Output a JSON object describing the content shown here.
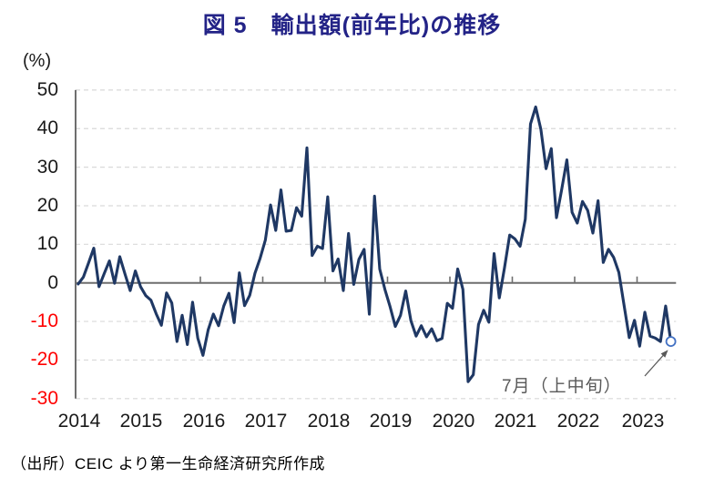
{
  "header": {
    "title": "図 5　輸出額(前年比)の推移",
    "title_color": "#232387"
  },
  "chart_data": {
    "type": "line",
    "title": "図 5　輸出額(前年比)の推移",
    "unit_label": "(%)",
    "frequency": "monthly",
    "x_start": "2014-01",
    "x_end": "2023-07",
    "ylim": [
      -30,
      50
    ],
    "ytick_interval": 10,
    "grid": "horizontal-dashed",
    "series": [
      {
        "name": "輸出額（前年比、%）",
        "color": "#1F3864",
        "values": [
          -0.3,
          1.5,
          5.2,
          9.0,
          -1.0,
          2.4,
          5.7,
          -0.1,
          6.8,
          2.3,
          -2.0,
          3.1,
          -1.0,
          -3.3,
          -4.5,
          -8.0,
          -11.0,
          -2.6,
          -5.2,
          -15.2,
          -8.4,
          -16.0,
          -5.0,
          -14.3,
          -18.8,
          -12.2,
          -8.1,
          -11.1,
          -6.0,
          -2.7,
          -10.3,
          2.6,
          -5.9,
          -3.2,
          2.5,
          6.4,
          11.1,
          20.2,
          13.6,
          24.1,
          13.4,
          13.6,
          19.5,
          17.3,
          35.0,
          7.1,
          9.5,
          8.9,
          22.3,
          3.1,
          6.2,
          -2.0,
          12.8,
          -0.4,
          6.1,
          8.7,
          -8.1,
          22.5,
          3.6,
          -1.7,
          -6.2,
          -11.3,
          -8.4,
          -2.1,
          -9.8,
          -13.8,
          -11.1,
          -14.0,
          -11.9,
          -15.0,
          -14.4,
          -5.3,
          -6.6,
          3.6,
          -1.7,
          -25.6,
          -23.8,
          -10.8,
          -7.1,
          -10.2,
          7.6,
          -3.9,
          3.9,
          12.4,
          11.4,
          9.5,
          16.5,
          41.2,
          45.6,
          39.8,
          29.6,
          34.8,
          16.9,
          24.2,
          31.9,
          18.3,
          15.5,
          21.1,
          18.8,
          12.9,
          21.3,
          5.3,
          8.7,
          6.6,
          2.7,
          -5.8,
          -14.2,
          -9.7,
          -16.4,
          -7.6,
          -13.8,
          -14.3,
          -15.2,
          -6.0,
          -15.2
        ]
      }
    ],
    "last_point": {
      "label": "7月（上中旬）",
      "value": -15.2,
      "marker": "open-circle"
    }
  },
  "axes": {
    "y_ticks": [
      {
        "label": "50",
        "color": "#1a1a1a"
      },
      {
        "label": "40",
        "color": "#1a1a1a"
      },
      {
        "label": "30",
        "color": "#1a1a1a"
      },
      {
        "label": "20",
        "color": "#1a1a1a"
      },
      {
        "label": "10",
        "color": "#1a1a1a"
      },
      {
        "label": "0",
        "color": "#1a1a1a"
      },
      {
        "label": "-10",
        "color": "#FF0000"
      },
      {
        "label": "-20",
        "color": "#FF0000"
      },
      {
        "label": "-30",
        "color": "#FF0000"
      }
    ],
    "x_ticks": [
      {
        "label": "2014"
      },
      {
        "label": "2015"
      },
      {
        "label": "2016"
      },
      {
        "label": "2017"
      },
      {
        "label": "2018"
      },
      {
        "label": "2019"
      },
      {
        "label": "2020"
      },
      {
        "label": "2021"
      },
      {
        "label": "2022"
      },
      {
        "label": "2023"
      }
    ]
  },
  "annotation": {
    "text": "7月（上中旬）",
    "color": "#595959"
  },
  "source": {
    "text": "（出所）CEIC より第一生命経済研究所作成"
  },
  "colors": {
    "line": "#1F3864",
    "axis": "#6E6E6E",
    "grid": "#D9D9D9",
    "marker_stroke": "#4472C4",
    "marker_fill": "#FFFFFF",
    "annotation": "#595959",
    "negative_label": "#FF0000"
  }
}
